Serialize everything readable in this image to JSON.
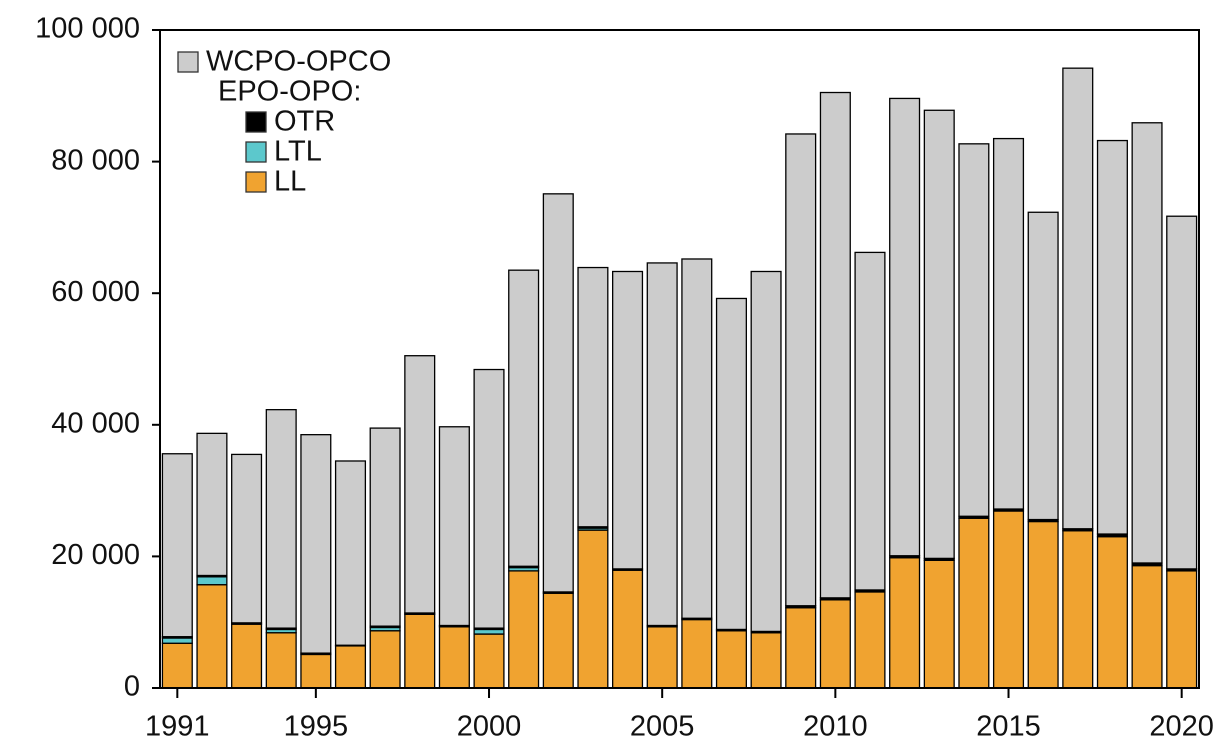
{
  "chart_data": {
    "type": "stacked-bar",
    "x": [
      1991,
      1992,
      1993,
      1994,
      1995,
      1996,
      1997,
      1998,
      1999,
      2000,
      2001,
      2002,
      2003,
      2004,
      2005,
      2006,
      2007,
      2008,
      2009,
      2010,
      2011,
      2012,
      2013,
      2014,
      2015,
      2016,
      2017,
      2018,
      2019,
      2020
    ],
    "series": [
      {
        "name": "LL",
        "color": "#f0a330",
        "values": [
          6800,
          15700,
          9700,
          8400,
          5100,
          6400,
          8700,
          11200,
          9300,
          8200,
          17800,
          14400,
          24000,
          17900,
          9300,
          10400,
          8700,
          8400,
          12200,
          13400,
          14600,
          19800,
          19400,
          25800,
          26900,
          25300,
          23900,
          23000,
          18600,
          17800
        ]
      },
      {
        "name": "LTL",
        "color": "#5cc8cc",
        "values": [
          800,
          1200,
          0,
          500,
          0,
          0,
          500,
          0,
          0,
          700,
          500,
          0,
          300,
          0,
          0,
          0,
          0,
          0,
          0,
          0,
          0,
          0,
          0,
          0,
          0,
          0,
          0,
          0,
          0,
          0
        ]
      },
      {
        "name": "OTR",
        "color": "#000000",
        "values": [
          200,
          200,
          200,
          200,
          200,
          100,
          200,
          200,
          200,
          200,
          200,
          200,
          200,
          200,
          200,
          200,
          200,
          200,
          300,
          300,
          300,
          300,
          300,
          300,
          300,
          300,
          300,
          400,
          400,
          300
        ]
      },
      {
        "name": "WCPO-OPCO",
        "color": "#cccccc",
        "values": [
          27800,
          21600,
          25600,
          33200,
          33200,
          28000,
          30100,
          39100,
          30200,
          39300,
          45000,
          60500,
          39400,
          45200,
          55100,
          54600,
          50300,
          54700,
          71700,
          76800,
          51300,
          69500,
          68100,
          56600,
          56300,
          46700,
          70000,
          59800,
          66900,
          53600
        ]
      }
    ],
    "legend_group_label": "EPO-OPO:",
    "xlim": [
      1990.5,
      2020.5
    ],
    "xticks": [
      1991,
      1995,
      2000,
      2005,
      2010,
      2015,
      2020
    ],
    "ylim": [
      0,
      100000
    ],
    "yticks": [
      0,
      {
        "value": 20000,
        "label": "20 000"
      },
      {
        "value": 40000,
        "label": "40 000"
      },
      {
        "value": 60000,
        "label": "60 000"
      },
      {
        "value": 80000,
        "label": "80 000"
      },
      {
        "value": 100000,
        "label": "100 000"
      }
    ],
    "legend_position": "upper left"
  }
}
